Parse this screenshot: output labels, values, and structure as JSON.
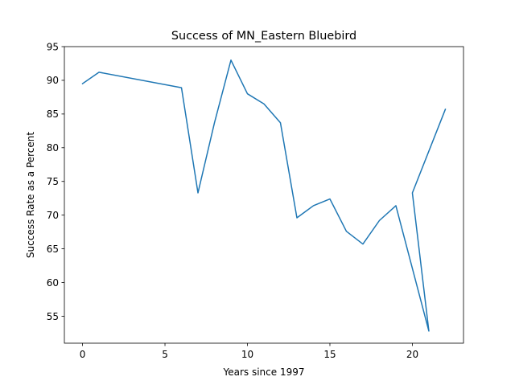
{
  "chart_data": {
    "type": "line",
    "title": "Success of MN_Eastern Bluebird",
    "xlabel": "Years since 1997",
    "ylabel": "Success Rate as a Percent",
    "xlim": [
      -1.1,
      23.1
    ],
    "ylim": [
      51.0,
      95
    ],
    "xticks": [
      0,
      5,
      10,
      15,
      20
    ],
    "yticks": [
      55,
      60,
      65,
      70,
      75,
      80,
      85,
      90,
      95
    ],
    "grid": false,
    "legend": "none",
    "series": [
      {
        "color": "#1f77b4",
        "x": [
          0,
          1,
          6,
          7,
          8,
          9,
          10,
          11,
          12,
          13,
          14,
          15,
          16,
          17,
          18,
          19,
          21,
          20,
          22
        ],
        "y": [
          89.5,
          91.2,
          88.9,
          73.3,
          83.7,
          93.0,
          88.0,
          86.5,
          83.7,
          69.6,
          71.4,
          72.4,
          67.6,
          65.7,
          69.2,
          71.4,
          52.8,
          73.3,
          85.7
        ]
      }
    ]
  }
}
